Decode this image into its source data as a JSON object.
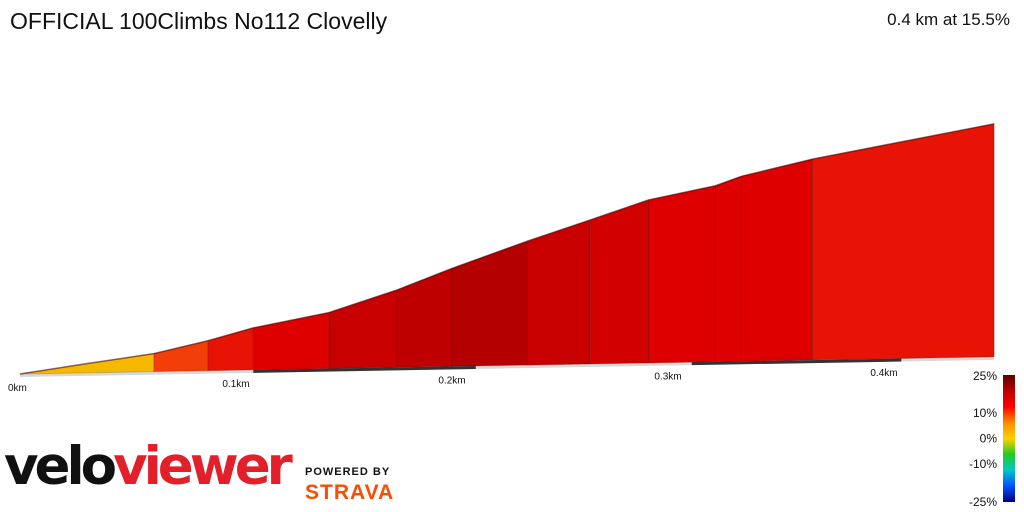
{
  "header": {
    "title": "OFFICIAL 100Climbs No112 Clovelly",
    "summary": "0.4 km at 15.5%"
  },
  "chart_data": {
    "type": "area",
    "title": "OFFICIAL 100Climbs No112 Clovelly",
    "xlabel": "",
    "ylabel": "",
    "x_unit": "km",
    "xlim": [
      0,
      0.45
    ],
    "x_ticks": [
      {
        "value": 0.0,
        "label": "0km"
      },
      {
        "value": 0.1,
        "label": "0.1km"
      },
      {
        "value": 0.2,
        "label": "0.2km"
      },
      {
        "value": 0.3,
        "label": "0.3km"
      },
      {
        "value": 0.4,
        "label": "0.4km"
      }
    ],
    "profile": [
      {
        "x": 0.0,
        "y": 0
      },
      {
        "x": 0.03,
        "y": 9
      },
      {
        "x": 0.062,
        "y": 18
      },
      {
        "x": 0.087,
        "y": 30
      },
      {
        "x": 0.108,
        "y": 42
      },
      {
        "x": 0.143,
        "y": 56
      },
      {
        "x": 0.174,
        "y": 77
      },
      {
        "x": 0.2,
        "y": 98
      },
      {
        "x": 0.235,
        "y": 124
      },
      {
        "x": 0.264,
        "y": 144
      },
      {
        "x": 0.291,
        "y": 163
      },
      {
        "x": 0.322,
        "y": 176
      },
      {
        "x": 0.334,
        "y": 185
      },
      {
        "x": 0.367,
        "y": 201
      },
      {
        "x": 0.451,
        "y": 233
      }
    ],
    "segments": [
      {
        "from": 0.0,
        "to": 0.062,
        "gradient_pct": 6
      },
      {
        "from": 0.062,
        "to": 0.087,
        "gradient_pct": 15
      },
      {
        "from": 0.087,
        "to": 0.108,
        "gradient_pct": 17
      },
      {
        "from": 0.108,
        "to": 0.143,
        "gradient_pct": 18
      },
      {
        "from": 0.143,
        "to": 0.174,
        "gradient_pct": 20
      },
      {
        "from": 0.174,
        "to": 0.2,
        "gradient_pct": 21
      },
      {
        "from": 0.2,
        "to": 0.235,
        "gradient_pct": 22
      },
      {
        "from": 0.235,
        "to": 0.264,
        "gradient_pct": 20
      },
      {
        "from": 0.264,
        "to": 0.291,
        "gradient_pct": 19
      },
      {
        "from": 0.291,
        "to": 0.322,
        "gradient_pct": 18
      },
      {
        "from": 0.322,
        "to": 0.334,
        "gradient_pct": 18
      },
      {
        "from": 0.334,
        "to": 0.367,
        "gradient_pct": 18
      },
      {
        "from": 0.367,
        "to": 0.451,
        "gradient_pct": 17
      }
    ],
    "gradient_scale": {
      "labels": [
        {
          "value": 25,
          "label": "25%"
        },
        {
          "value": 10,
          "label": "10%"
        },
        {
          "value": 0,
          "label": "0%"
        },
        {
          "value": -10,
          "label": "-10%"
        },
        {
          "value": -25,
          "label": "-25%"
        }
      ],
      "colors": [
        "#5a0000",
        "#c00000",
        "#ff0000",
        "#ff8c00",
        "#ffd000",
        "#22cc22",
        "#00c8c8",
        "#0050ff",
        "#000080"
      ]
    },
    "grid": false,
    "legend": "right"
  },
  "branding": {
    "velo": "velo",
    "viewer": "viewer",
    "powered_by": "POWERED BY",
    "strava": "STRAVA"
  }
}
